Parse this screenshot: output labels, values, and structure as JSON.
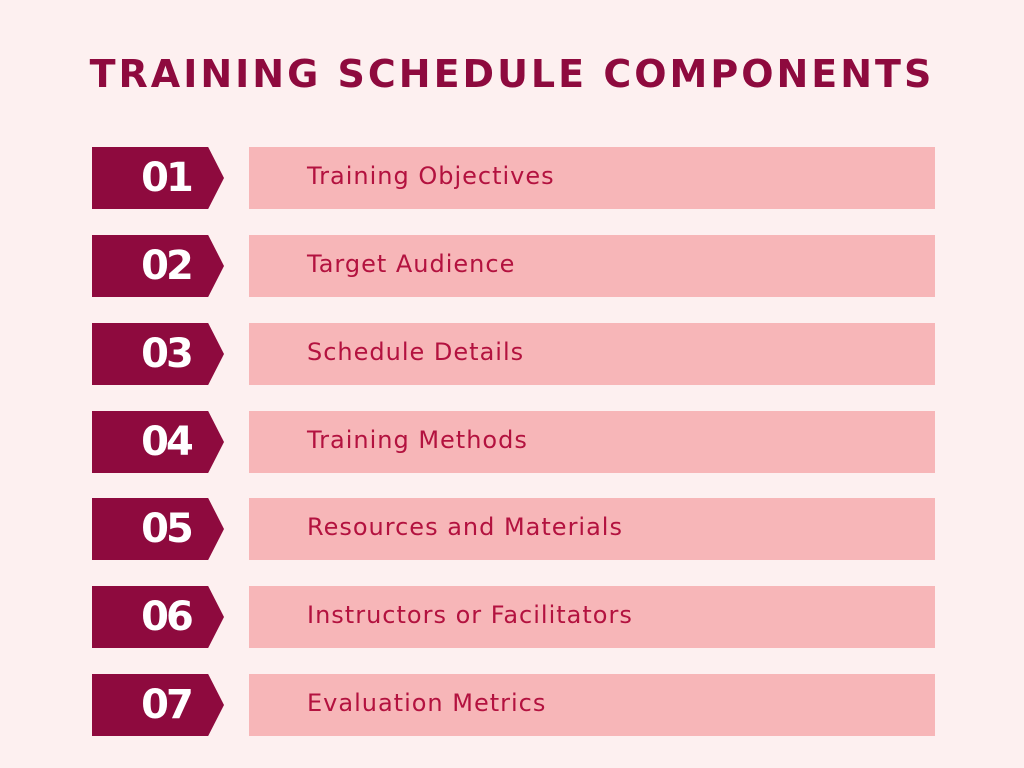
{
  "title": "TRAINING SCHEDULE COMPONENTS",
  "colors": {
    "background": "#fdf0f0",
    "accent": "#8e0a3e",
    "label_box": "#f7b6b8",
    "label_text": "#b3123f",
    "number_text": "#ffffff"
  },
  "items": [
    {
      "number": "01",
      "label": "Training Objectives"
    },
    {
      "number": "02",
      "label": "Target Audience"
    },
    {
      "number": "03",
      "label": "Schedule Details"
    },
    {
      "number": "04",
      "label": "Training Methods"
    },
    {
      "number": "05",
      "label": "Resources and Materials"
    },
    {
      "number": "06",
      "label": "Instructors or Facilitators"
    },
    {
      "number": "07",
      "label": "Evaluation Metrics"
    }
  ]
}
